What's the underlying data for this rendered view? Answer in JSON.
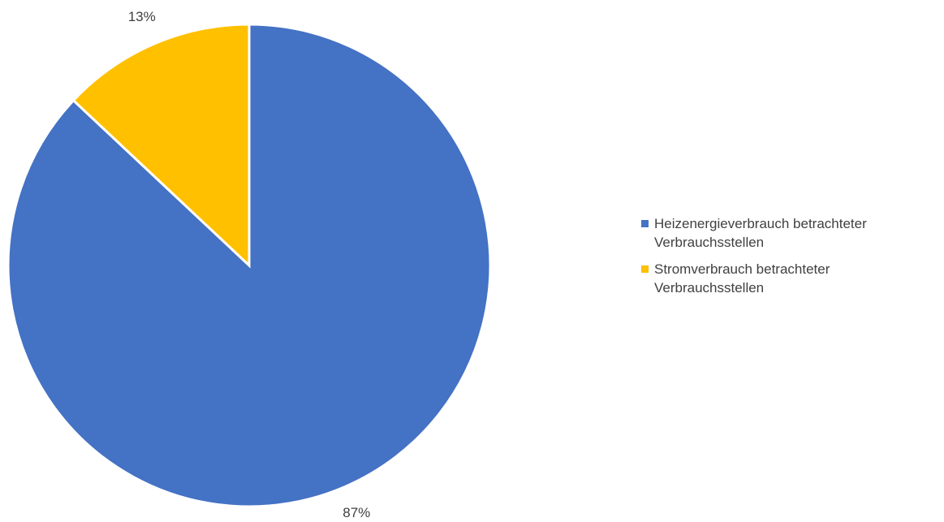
{
  "chart_data": {
    "type": "pie",
    "categories": [
      "Heizenergieverbrauch betrachteter Verbrauchsstellen",
      "Stromverbrauch betrachteter Verbrauchsstellen"
    ],
    "values": [
      87,
      13
    ],
    "value_labels": [
      "87%",
      "13%"
    ],
    "colors": [
      "#4472c4",
      "#ffc000"
    ],
    "legend": "right"
  }
}
